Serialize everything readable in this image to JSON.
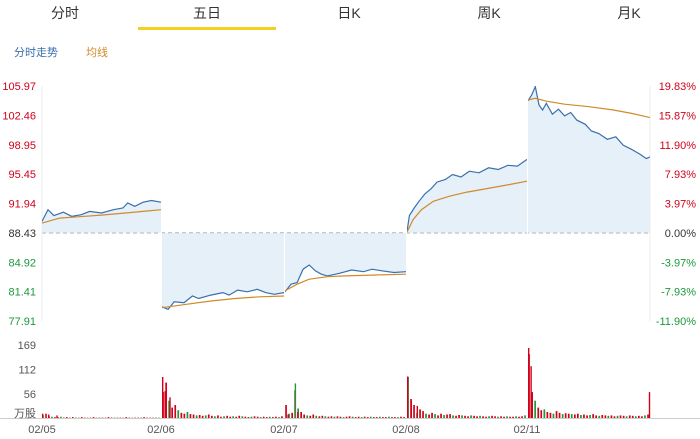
{
  "tabs": [
    "分时",
    "五日",
    "日K",
    "周K",
    "月K"
  ],
  "active_tab": 1,
  "legend": {
    "price": "分时走势",
    "avg": "均线"
  },
  "colors": {
    "price": "#3a6fae",
    "avg": "#d08a2b",
    "up": "#d0021b",
    "down": "#1a9a3a",
    "tab_active": "#f3d21f",
    "fill": "#dbe9f7"
  },
  "chart_data": {
    "type": "line",
    "title": "",
    "prev_close": 88.43,
    "ylim": [
      77.91,
      105.97
    ],
    "y_ticks_price": [
      "105.97",
      "102.46",
      "98.95",
      "95.45",
      "91.94",
      "88.43",
      "84.92",
      "81.41",
      "77.91"
    ],
    "y_ticks_pct": [
      "19.83%",
      "15.87%",
      "11.90%",
      "7.93%",
      "3.97%",
      "0.00%",
      "-3.97%",
      "-7.93%",
      "-11.90%"
    ],
    "x_labels": [
      "02/05",
      "02/06",
      "02/07",
      "02/08",
      "02/11"
    ],
    "days": [
      {
        "date": "02/05",
        "price": [
          [
            0,
            89.8
          ],
          [
            0.05,
            91.2
          ],
          [
            0.1,
            90.5
          ],
          [
            0.18,
            90.9
          ],
          [
            0.25,
            90.4
          ],
          [
            0.33,
            90.6
          ],
          [
            0.4,
            91.0
          ],
          [
            0.5,
            90.8
          ],
          [
            0.6,
            91.2
          ],
          [
            0.68,
            91.4
          ],
          [
            0.72,
            92.0
          ],
          [
            0.78,
            91.6
          ],
          [
            0.85,
            92.1
          ],
          [
            0.92,
            92.3
          ],
          [
            1.0,
            92.1
          ]
        ],
        "avg": [
          [
            0,
            89.6
          ],
          [
            0.15,
            90.2
          ],
          [
            0.3,
            90.35
          ],
          [
            0.5,
            90.55
          ],
          [
            0.7,
            90.8
          ],
          [
            0.85,
            91.0
          ],
          [
            1.0,
            91.2
          ]
        ]
      },
      {
        "date": "02/06",
        "price": [
          [
            0,
            79.6
          ],
          [
            0.05,
            79.3
          ],
          [
            0.1,
            80.2
          ],
          [
            0.18,
            80.1
          ],
          [
            0.25,
            80.9
          ],
          [
            0.3,
            80.6
          ],
          [
            0.4,
            81.0
          ],
          [
            0.5,
            81.3
          ],
          [
            0.55,
            81.0
          ],
          [
            0.62,
            81.6
          ],
          [
            0.7,
            81.4
          ],
          [
            0.78,
            81.7
          ],
          [
            0.85,
            81.3
          ],
          [
            0.92,
            81.1
          ],
          [
            1.0,
            81.3
          ]
        ],
        "avg": [
          [
            0,
            79.5
          ],
          [
            0.2,
            79.9
          ],
          [
            0.4,
            80.3
          ],
          [
            0.6,
            80.6
          ],
          [
            0.8,
            80.8
          ],
          [
            1.0,
            80.9
          ]
        ]
      },
      {
        "date": "02/07",
        "price": [
          [
            0,
            81.4
          ],
          [
            0.05,
            82.3
          ],
          [
            0.1,
            82.5
          ],
          [
            0.15,
            84.1
          ],
          [
            0.2,
            84.6
          ],
          [
            0.25,
            83.9
          ],
          [
            0.3,
            83.5
          ],
          [
            0.35,
            83.3
          ],
          [
            0.45,
            83.6
          ],
          [
            0.55,
            84.0
          ],
          [
            0.65,
            83.8
          ],
          [
            0.72,
            84.1
          ],
          [
            0.8,
            83.9
          ],
          [
            0.9,
            83.7
          ],
          [
            1.0,
            83.8
          ]
        ],
        "avg": [
          [
            0,
            81.5
          ],
          [
            0.1,
            82.3
          ],
          [
            0.2,
            82.9
          ],
          [
            0.35,
            83.2
          ],
          [
            0.5,
            83.3
          ],
          [
            0.75,
            83.4
          ],
          [
            1.0,
            83.5
          ]
        ]
      },
      {
        "date": "02/08",
        "price": [
          [
            0,
            88.6
          ],
          [
            0.02,
            90.5
          ],
          [
            0.06,
            91.4
          ],
          [
            0.1,
            92.2
          ],
          [
            0.15,
            93.1
          ],
          [
            0.2,
            93.7
          ],
          [
            0.25,
            94.5
          ],
          [
            0.32,
            94.8
          ],
          [
            0.38,
            95.4
          ],
          [
            0.45,
            95.1
          ],
          [
            0.52,
            95.8
          ],
          [
            0.6,
            95.6
          ],
          [
            0.68,
            96.2
          ],
          [
            0.76,
            96.0
          ],
          [
            0.84,
            96.5
          ],
          [
            0.92,
            96.4
          ],
          [
            1.0,
            97.2
          ]
        ],
        "avg": [
          [
            0,
            88.5
          ],
          [
            0.05,
            90.0
          ],
          [
            0.12,
            91.2
          ],
          [
            0.22,
            92.2
          ],
          [
            0.35,
            92.8
          ],
          [
            0.5,
            93.3
          ],
          [
            0.7,
            93.8
          ],
          [
            0.85,
            94.2
          ],
          [
            1.0,
            94.6
          ]
        ]
      },
      {
        "date": "02/11",
        "price": [
          [
            0,
            104.2
          ],
          [
            0.03,
            104.9
          ],
          [
            0.06,
            105.9
          ],
          [
            0.09,
            103.7
          ],
          [
            0.12,
            103.1
          ],
          [
            0.15,
            103.9
          ],
          [
            0.2,
            102.6
          ],
          [
            0.25,
            103.2
          ],
          [
            0.3,
            102.4
          ],
          [
            0.35,
            102.8
          ],
          [
            0.4,
            101.9
          ],
          [
            0.47,
            101.4
          ],
          [
            0.52,
            100.6
          ],
          [
            0.58,
            100.3
          ],
          [
            0.65,
            99.6
          ],
          [
            0.72,
            99.9
          ],
          [
            0.78,
            98.9
          ],
          [
            0.85,
            98.4
          ],
          [
            0.92,
            97.8
          ],
          [
            0.97,
            97.3
          ],
          [
            1.0,
            97.5
          ]
        ],
        "avg": [
          [
            0,
            104.3
          ],
          [
            0.06,
            104.5
          ],
          [
            0.15,
            104.15
          ],
          [
            0.3,
            103.8
          ],
          [
            0.5,
            103.5
          ],
          [
            0.7,
            103.1
          ],
          [
            0.85,
            102.7
          ],
          [
            1.0,
            102.2
          ]
        ]
      }
    ],
    "volume": {
      "ylabel": "万股",
      "y_ticks": [
        "169",
        "112",
        "56"
      ],
      "ylim": [
        0,
        169
      ],
      "days": [
        {
          "bars": [
            6,
            10,
            4,
            3,
            2,
            2,
            3,
            1,
            2,
            1,
            2,
            1,
            1,
            2,
            1,
            1,
            1,
            2,
            1,
            1,
            1,
            1,
            2,
            1,
            1,
            1,
            1,
            1,
            2,
            1,
            1,
            1,
            1,
            1,
            2,
            1,
            1,
            1,
            1,
            1
          ],
          "peaks": [
            [
              0.0,
              10
            ],
            [
              0.05,
              8
            ],
            [
              0.12,
              6
            ]
          ]
        },
        {
          "bars": [
            60,
            82,
            40,
            24,
            30,
            18,
            12,
            10,
            14,
            9,
            8,
            6,
            7,
            5,
            6,
            8,
            5,
            4,
            6,
            3,
            4,
            5,
            3,
            4,
            3,
            5,
            4,
            3,
            2,
            3,
            4,
            3,
            2,
            3,
            2,
            3,
            2,
            3,
            2,
            4
          ],
          "peaks": [
            [
              0.0,
              95
            ],
            [
              0.02,
              62
            ],
            [
              0.06,
              48
            ]
          ]
        },
        {
          "bars": [
            30,
            10,
            12,
            64,
            22,
            14,
            8,
            6,
            5,
            8,
            5,
            4,
            5,
            4,
            3,
            4,
            3,
            4,
            3,
            2,
            3,
            4,
            3,
            2,
            3,
            2,
            3,
            2,
            3,
            2,
            2,
            3,
            2,
            2,
            3,
            2,
            2,
            2,
            3,
            2
          ],
          "peaks": [
            [
              0.02,
              8
            ],
            [
              0.08,
              80
            ],
            [
              0.1,
              14
            ]
          ]
        },
        {
          "bars": [
            95,
            44,
            30,
            12,
            20,
            16,
            10,
            8,
            12,
            9,
            6,
            10,
            7,
            8,
            9,
            6,
            5,
            7,
            6,
            5,
            4,
            6,
            5,
            4,
            5,
            4,
            3,
            4,
            5,
            4,
            3,
            4,
            3,
            4,
            3,
            3,
            4,
            3,
            4,
            6
          ],
          "peaks": [
            [
              0.0,
              96
            ],
            [
              0.03,
              40
            ],
            [
              0.08,
              28
            ]
          ]
        },
        {
          "bars": [
            148,
            60,
            40,
            24,
            18,
            20,
            14,
            12,
            10,
            16,
            12,
            9,
            11,
            10,
            9,
            8,
            10,
            7,
            8,
            6,
            7,
            9,
            6,
            5,
            7,
            6,
            5,
            6,
            4,
            5,
            6,
            5,
            4,
            6,
            5,
            4,
            5,
            4,
            6,
            8
          ],
          "peaks": [
            [
              0.0,
              162
            ],
            [
              0.02,
              120
            ],
            [
              0.99,
              60
            ]
          ]
        }
      ]
    }
  }
}
